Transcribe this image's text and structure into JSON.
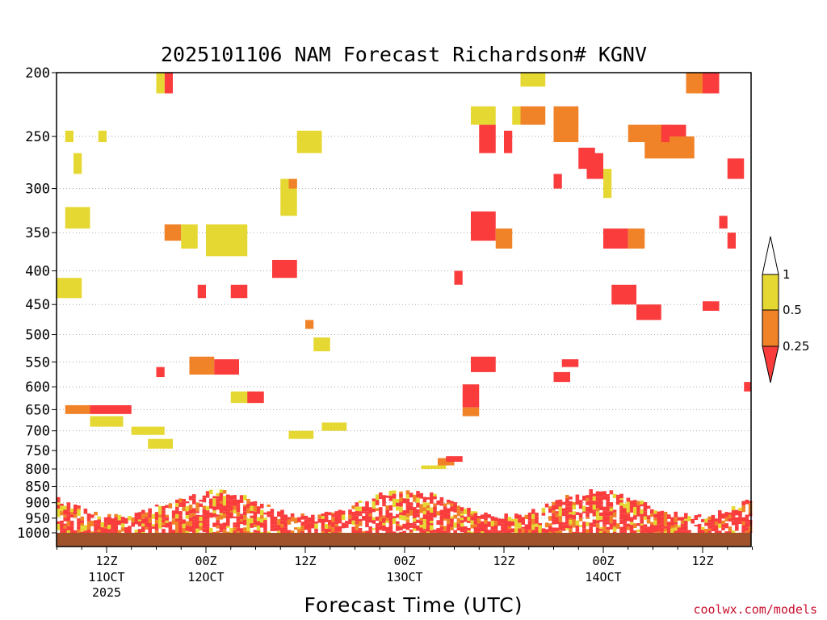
{
  "chart_data": {
    "type": "heatmap",
    "title": "2025101106 NAM Forecast Richardson# KGNV",
    "xlabel": "Forecast Time (UTC)",
    "ylabel": "",
    "y_scale": "log",
    "y_inverted": true,
    "ylim": [
      1000,
      200
    ],
    "y_ticks": [
      200,
      250,
      300,
      350,
      400,
      450,
      500,
      550,
      600,
      650,
      700,
      750,
      800,
      850,
      900,
      950,
      1000
    ],
    "y_tick_labels": [
      "200",
      "250",
      "300",
      "350",
      "400",
      "450",
      "500",
      "550",
      "600",
      "650",
      "700",
      "750",
      "800",
      "850",
      "900",
      "950",
      "1000"
    ],
    "x_range": [
      "2025-10-11T06Z",
      "2025-10-14T18Z"
    ],
    "x_ticks": [
      {
        "time": "2025-10-11T12Z",
        "label": "12Z",
        "sub": "11OCT",
        "sub2": "2025"
      },
      {
        "time": "2025-10-12T00Z",
        "label": "00Z",
        "sub": "12OCT",
        "sub2": ""
      },
      {
        "time": "2025-10-12T12Z",
        "label": "12Z",
        "sub": "",
        "sub2": ""
      },
      {
        "time": "2025-10-13T00Z",
        "label": "00Z",
        "sub": "13OCT",
        "sub2": ""
      },
      {
        "time": "2025-10-13T12Z",
        "label": "12Z",
        "sub": "",
        "sub2": ""
      },
      {
        "time": "2025-10-14T00Z",
        "label": "00Z",
        "sub": "14OCT",
        "sub2": ""
      },
      {
        "time": "2025-10-14T12Z",
        "label": "12Z",
        "sub": "",
        "sub2": ""
      }
    ],
    "grid": "horizontal dotted",
    "colorbar": {
      "placement": "right",
      "levels": [
        {
          "label": "1",
          "color": "#ffffff"
        },
        {
          "label": "0.5",
          "color": "#e6d832"
        },
        {
          "label": "0.25",
          "color": "#f08228"
        },
        {
          "label": "",
          "color": "#fa3c3c"
        }
      ],
      "tick_labels": [
        "1",
        "0.5",
        "0.25"
      ]
    },
    "categories_legend": [
      {
        "range": "0.5-1",
        "color": "#e6d832"
      },
      {
        "range": "0.25-0.5",
        "color": "#f08228"
      },
      {
        "range": "<0.25",
        "color": "#fa3c3c"
      }
    ],
    "ground_color": "#a0522d",
    "cells": [
      {
        "t0": "2025-10-11T06Z",
        "t1": "2025-10-11T09Z",
        "p0": 440,
        "p1": 410,
        "c": "y"
      },
      {
        "t0": "2025-10-11T07Z",
        "t1": "2025-10-11T10Z",
        "p0": 345,
        "p1": 320,
        "c": "y"
      },
      {
        "t0": "2025-10-11T08Z",
        "t1": "2025-10-11T09Z",
        "p0": 285,
        "p1": 265,
        "c": "y"
      },
      {
        "t0": "2025-10-11T07Z",
        "t1": "2025-10-11T08Z",
        "p0": 255,
        "p1": 245,
        "c": "y"
      },
      {
        "t0": "2025-10-11T11Z",
        "t1": "2025-10-11T12Z",
        "p0": 255,
        "p1": 245,
        "c": "y"
      },
      {
        "t0": "2025-10-11T07Z",
        "t1": "2025-10-11T10Z",
        "p0": 660,
        "p1": 640,
        "c": "o"
      },
      {
        "t0": "2025-10-11T10Z",
        "t1": "2025-10-11T15Z",
        "p0": 660,
        "p1": 640,
        "c": "r"
      },
      {
        "t0": "2025-10-11T10Z",
        "t1": "2025-10-11T14Z",
        "p0": 690,
        "p1": 665,
        "c": "y"
      },
      {
        "t0": "2025-10-11T15Z",
        "t1": "2025-10-11T19Z",
        "p0": 710,
        "p1": 690,
        "c": "y"
      },
      {
        "t0": "2025-10-11T17Z",
        "t1": "2025-10-11T20Z",
        "p0": 745,
        "p1": 720,
        "c": "y"
      },
      {
        "t0": "2025-10-11T18Z",
        "t1": "2025-10-11T19Z",
        "p0": 580,
        "p1": 560,
        "c": "r"
      },
      {
        "t0": "2025-10-11T19Z",
        "t1": "2025-10-11T20Z",
        "p0": 215,
        "p1": 200,
        "c": "r"
      },
      {
        "t0": "2025-10-11T18Z",
        "t1": "2025-10-11T19Z",
        "p0": 215,
        "p1": 200,
        "c": "y"
      },
      {
        "t0": "2025-10-11T19Z",
        "t1": "2025-10-11T21Z",
        "p0": 360,
        "p1": 340,
        "c": "o"
      },
      {
        "t0": "2025-10-11T21Z",
        "t1": "2025-10-11T23Z",
        "p0": 370,
        "p1": 340,
        "c": "y"
      },
      {
        "t0": "2025-10-12T00Z",
        "t1": "2025-10-12T05Z",
        "p0": 380,
        "p1": 340,
        "c": "y"
      },
      {
        "t0": "2025-10-12T03Z",
        "t1": "2025-10-12T05Z",
        "p0": 440,
        "p1": 420,
        "c": "r"
      },
      {
        "t0": "2025-10-11T23Z",
        "t1": "2025-10-12T00Z",
        "p0": 440,
        "p1": 420,
        "c": "r"
      },
      {
        "t0": "2025-10-11T22Z",
        "t1": "2025-10-12T01Z",
        "p0": 575,
        "p1": 540,
        "c": "o"
      },
      {
        "t0": "2025-10-12T01Z",
        "t1": "2025-10-12T04Z",
        "p0": 575,
        "p1": 545,
        "c": "r"
      },
      {
        "t0": "2025-10-12T03Z",
        "t1": "2025-10-12T06Z",
        "p0": 635,
        "p1": 610,
        "c": "y"
      },
      {
        "t0": "2025-10-12T05Z",
        "t1": "2025-10-12T07Z",
        "p0": 635,
        "p1": 610,
        "c": "r"
      },
      {
        "t0": "2025-10-12T08Z",
        "t1": "2025-10-12T11Z",
        "p0": 410,
        "p1": 385,
        "c": "r"
      },
      {
        "t0": "2025-10-12T09Z",
        "t1": "2025-10-12T11Z",
        "p0": 330,
        "p1": 290,
        "c": "y"
      },
      {
        "t0": "2025-10-12T10Z",
        "t1": "2025-10-12T11Z",
        "p0": 300,
        "p1": 290,
        "c": "o"
      },
      {
        "t0": "2025-10-12T11Z",
        "t1": "2025-10-12T14Z",
        "p0": 265,
        "p1": 245,
        "c": "y"
      },
      {
        "t0": "2025-10-12T12Z",
        "t1": "2025-10-12T13Z",
        "p0": 490,
        "p1": 475,
        "c": "o"
      },
      {
        "t0": "2025-10-12T13Z",
        "t1": "2025-10-12T15Z",
        "p0": 530,
        "p1": 505,
        "c": "y"
      },
      {
        "t0": "2025-10-12T10Z",
        "t1": "2025-10-12T13Z",
        "p0": 720,
        "p1": 700,
        "c": "y"
      },
      {
        "t0": "2025-10-12T14Z",
        "t1": "2025-10-12T17Z",
        "p0": 700,
        "p1": 680,
        "c": "y"
      },
      {
        "t0": "2025-10-13T02Z",
        "t1": "2025-10-13T05Z",
        "p0": 800,
        "p1": 790,
        "c": "y"
      },
      {
        "t0": "2025-10-13T04Z",
        "t1": "2025-10-13T06Z",
        "p0": 790,
        "p1": 770,
        "c": "o"
      },
      {
        "t0": "2025-10-13T05Z",
        "t1": "2025-10-13T07Z",
        "p0": 780,
        "p1": 765,
        "c": "r"
      },
      {
        "t0": "2025-10-13T07Z",
        "t1": "2025-10-13T09Z",
        "p0": 645,
        "p1": 595,
        "c": "r"
      },
      {
        "t0": "2025-10-13T07Z",
        "t1": "2025-10-13T09Z",
        "p0": 665,
        "p1": 645,
        "c": "o"
      },
      {
        "t0": "2025-10-13T08Z",
        "t1": "2025-10-13T11Z",
        "p0": 570,
        "p1": 540,
        "c": "r"
      },
      {
        "t0": "2025-10-13T08Z",
        "t1": "2025-10-13T11Z",
        "p0": 360,
        "p1": 325,
        "c": "r"
      },
      {
        "t0": "2025-10-13T11Z",
        "t1": "2025-10-13T13Z",
        "p0": 370,
        "p1": 345,
        "c": "o"
      },
      {
        "t0": "2025-10-13T09Z",
        "t1": "2025-10-13T11Z",
        "p0": 265,
        "p1": 240,
        "c": "r"
      },
      {
        "t0": "2025-10-13T08Z",
        "t1": "2025-10-13T11Z",
        "p0": 240,
        "p1": 225,
        "c": "y"
      },
      {
        "t0": "2025-10-13T06Z",
        "t1": "2025-10-13T07Z",
        "p0": 420,
        "p1": 400,
        "c": "r"
      },
      {
        "t0": "2025-10-13T12Z",
        "t1": "2025-10-13T13Z",
        "p0": 265,
        "p1": 245,
        "c": "r"
      },
      {
        "t0": "2025-10-13T13Z",
        "t1": "2025-10-13T14Z",
        "p0": 240,
        "p1": 225,
        "c": "y"
      },
      {
        "t0": "2025-10-13T14Z",
        "t1": "2025-10-13T17Z",
        "p0": 240,
        "p1": 225,
        "c": "o"
      },
      {
        "t0": "2025-10-13T14Z",
        "t1": "2025-10-13T17Z",
        "p0": 210,
        "p1": 200,
        "c": "y"
      },
      {
        "t0": "2025-10-13T18Z",
        "t1": "2025-10-13T21Z",
        "p0": 255,
        "p1": 225,
        "c": "o"
      },
      {
        "t0": "2025-10-13T18Z",
        "t1": "2025-10-13T19Z",
        "p0": 300,
        "p1": 285,
        "c": "r"
      },
      {
        "t0": "2025-10-13T18Z",
        "t1": "2025-10-13T20Z",
        "p0": 590,
        "p1": 570,
        "c": "r"
      },
      {
        "t0": "2025-10-13T19Z",
        "t1": "2025-10-13T21Z",
        "p0": 560,
        "p1": 545,
        "c": "r"
      },
      {
        "t0": "2025-10-13T21Z",
        "t1": "2025-10-13T23Z",
        "p0": 280,
        "p1": 260,
        "c": "r"
      },
      {
        "t0": "2025-10-13T22Z",
        "t1": "2025-10-14T00Z",
        "p0": 290,
        "p1": 265,
        "c": "r"
      },
      {
        "t0": "2025-10-14T00Z",
        "t1": "2025-10-14T01Z",
        "p0": 310,
        "p1": 280,
        "c": "y"
      },
      {
        "t0": "2025-10-14T00Z",
        "t1": "2025-10-14T03Z",
        "p0": 370,
        "p1": 345,
        "c": "r"
      },
      {
        "t0": "2025-10-14T03Z",
        "t1": "2025-10-14T05Z",
        "p0": 370,
        "p1": 345,
        "c": "o"
      },
      {
        "t0": "2025-10-14T01Z",
        "t1": "2025-10-14T04Z",
        "p0": 450,
        "p1": 420,
        "c": "r"
      },
      {
        "t0": "2025-10-14T04Z",
        "t1": "2025-10-14T07Z",
        "p0": 475,
        "p1": 450,
        "c": "r"
      },
      {
        "t0": "2025-10-14T03Z",
        "t1": "2025-10-14T08Z",
        "p0": 255,
        "p1": 240,
        "c": "o"
      },
      {
        "t0": "2025-10-14T05Z",
        "t1": "2025-10-14T08Z",
        "p0": 270,
        "p1": 250,
        "c": "o"
      },
      {
        "t0": "2025-10-14T07Z",
        "t1": "2025-10-14T10Z",
        "p0": 255,
        "p1": 240,
        "c": "r"
      },
      {
        "t0": "2025-10-14T08Z",
        "t1": "2025-10-14T11Z",
        "p0": 270,
        "p1": 250,
        "c": "o"
      },
      {
        "t0": "2025-10-14T10Z",
        "t1": "2025-10-14T13Z",
        "p0": 215,
        "p1": 200,
        "c": "o"
      },
      {
        "t0": "2025-10-14T12Z",
        "t1": "2025-10-14T14Z",
        "p0": 215,
        "p1": 200,
        "c": "r"
      },
      {
        "t0": "2025-10-14T15Z",
        "t1": "2025-10-14T17Z",
        "p0": 290,
        "p1": 270,
        "c": "r"
      },
      {
        "t0": "2025-10-14T14Z",
        "t1": "2025-10-14T15Z",
        "p0": 345,
        "p1": 330,
        "c": "r"
      },
      {
        "t0": "2025-10-14T12Z",
        "t1": "2025-10-14T14Z",
        "p0": 460,
        "p1": 445,
        "c": "r"
      },
      {
        "t0": "2025-10-14T15Z",
        "t1": "2025-10-14T16Z",
        "p0": 370,
        "p1": 350,
        "c": "r"
      },
      {
        "t0": "2025-10-14T17Z",
        "t1": "2025-10-14T18Z",
        "p0": 610,
        "p1": 590,
        "c": "r"
      }
    ],
    "pbl_note": "dense low-level stable/unstable layers from surface to ~850 hPa throughout"
  },
  "credit": "coolwx.com/models"
}
